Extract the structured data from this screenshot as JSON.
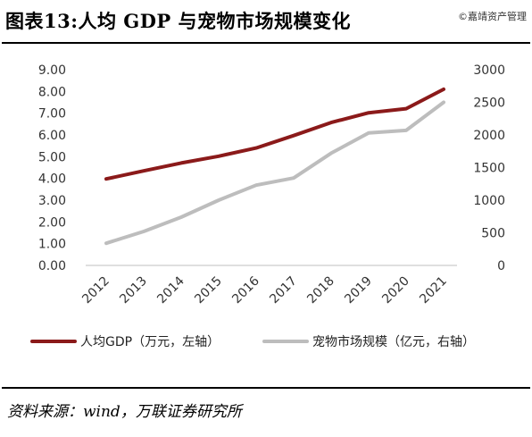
{
  "header": {
    "title": "图表13:人均 GDP 与宠物市场规模变化",
    "watermark": "©嘉靖资产管理"
  },
  "footer": {
    "source": "资料来源：wind，万联证券研究所"
  },
  "colors": {
    "gdp_line": "#8B1A1A",
    "pet_line": "#BDBDBD"
  },
  "chart_data": {
    "type": "line",
    "x": [
      "2012",
      "2013",
      "2014",
      "2015",
      "2016",
      "2017",
      "2018",
      "2019",
      "2020",
      "2021"
    ],
    "series": [
      {
        "name": "人均GDP（万元，左轴）",
        "axis": "left",
        "values": [
          3.98,
          4.35,
          4.71,
          5.02,
          5.4,
          5.97,
          6.57,
          7.02,
          7.21,
          8.1
        ]
      },
      {
        "name": "宠物市场规模（亿元，右轴）",
        "axis": "right",
        "values": [
          340,
          520,
          740,
          1000,
          1230,
          1340,
          1720,
          2030,
          2070,
          2500
        ]
      }
    ],
    "y_left": {
      "ylim": [
        0,
        9
      ],
      "ticks": [
        "0.00",
        "1.00",
        "2.00",
        "3.00",
        "4.00",
        "5.00",
        "6.00",
        "7.00",
        "8.00",
        "9.00"
      ]
    },
    "y_right": {
      "ylim": [
        0,
        3000
      ],
      "ticks": [
        "0",
        "500",
        "1000",
        "1500",
        "2000",
        "2500",
        "3000"
      ]
    },
    "grid": false,
    "legend_position": "bottom"
  }
}
